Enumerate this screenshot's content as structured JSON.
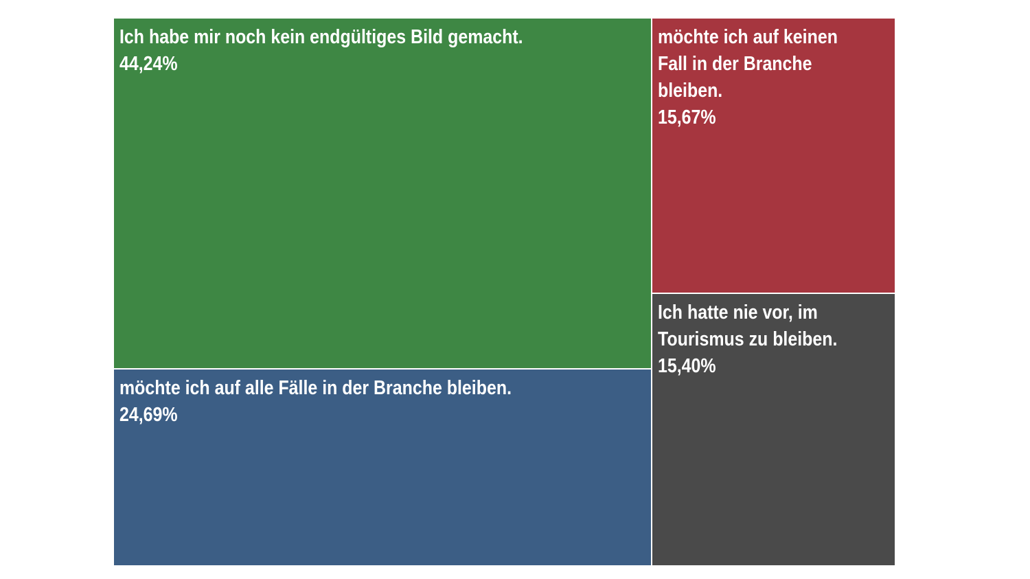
{
  "chart_data": {
    "type": "treemap",
    "items": [
      {
        "label": "Ich habe mir noch kein endgültiges Bild gemacht.",
        "value": 44.24,
        "value_label": "44,24%",
        "color": "#3e8744"
      },
      {
        "label": "möchte ich auf alle Fälle in der Branche bleiben.",
        "value": 24.69,
        "value_label": "24,69%",
        "color": "#3c5e85"
      },
      {
        "label": "möchte ich auf keinen Fall in der Branche bleiben.",
        "value": 15.67,
        "value_label": "15,67%",
        "color": "#a6363f"
      },
      {
        "label": "Ich hatte nie vor, im Tourismus zu bleiben.",
        "value": 15.4,
        "value_label": "15,40%",
        "color": "#4a4a4a"
      }
    ]
  }
}
